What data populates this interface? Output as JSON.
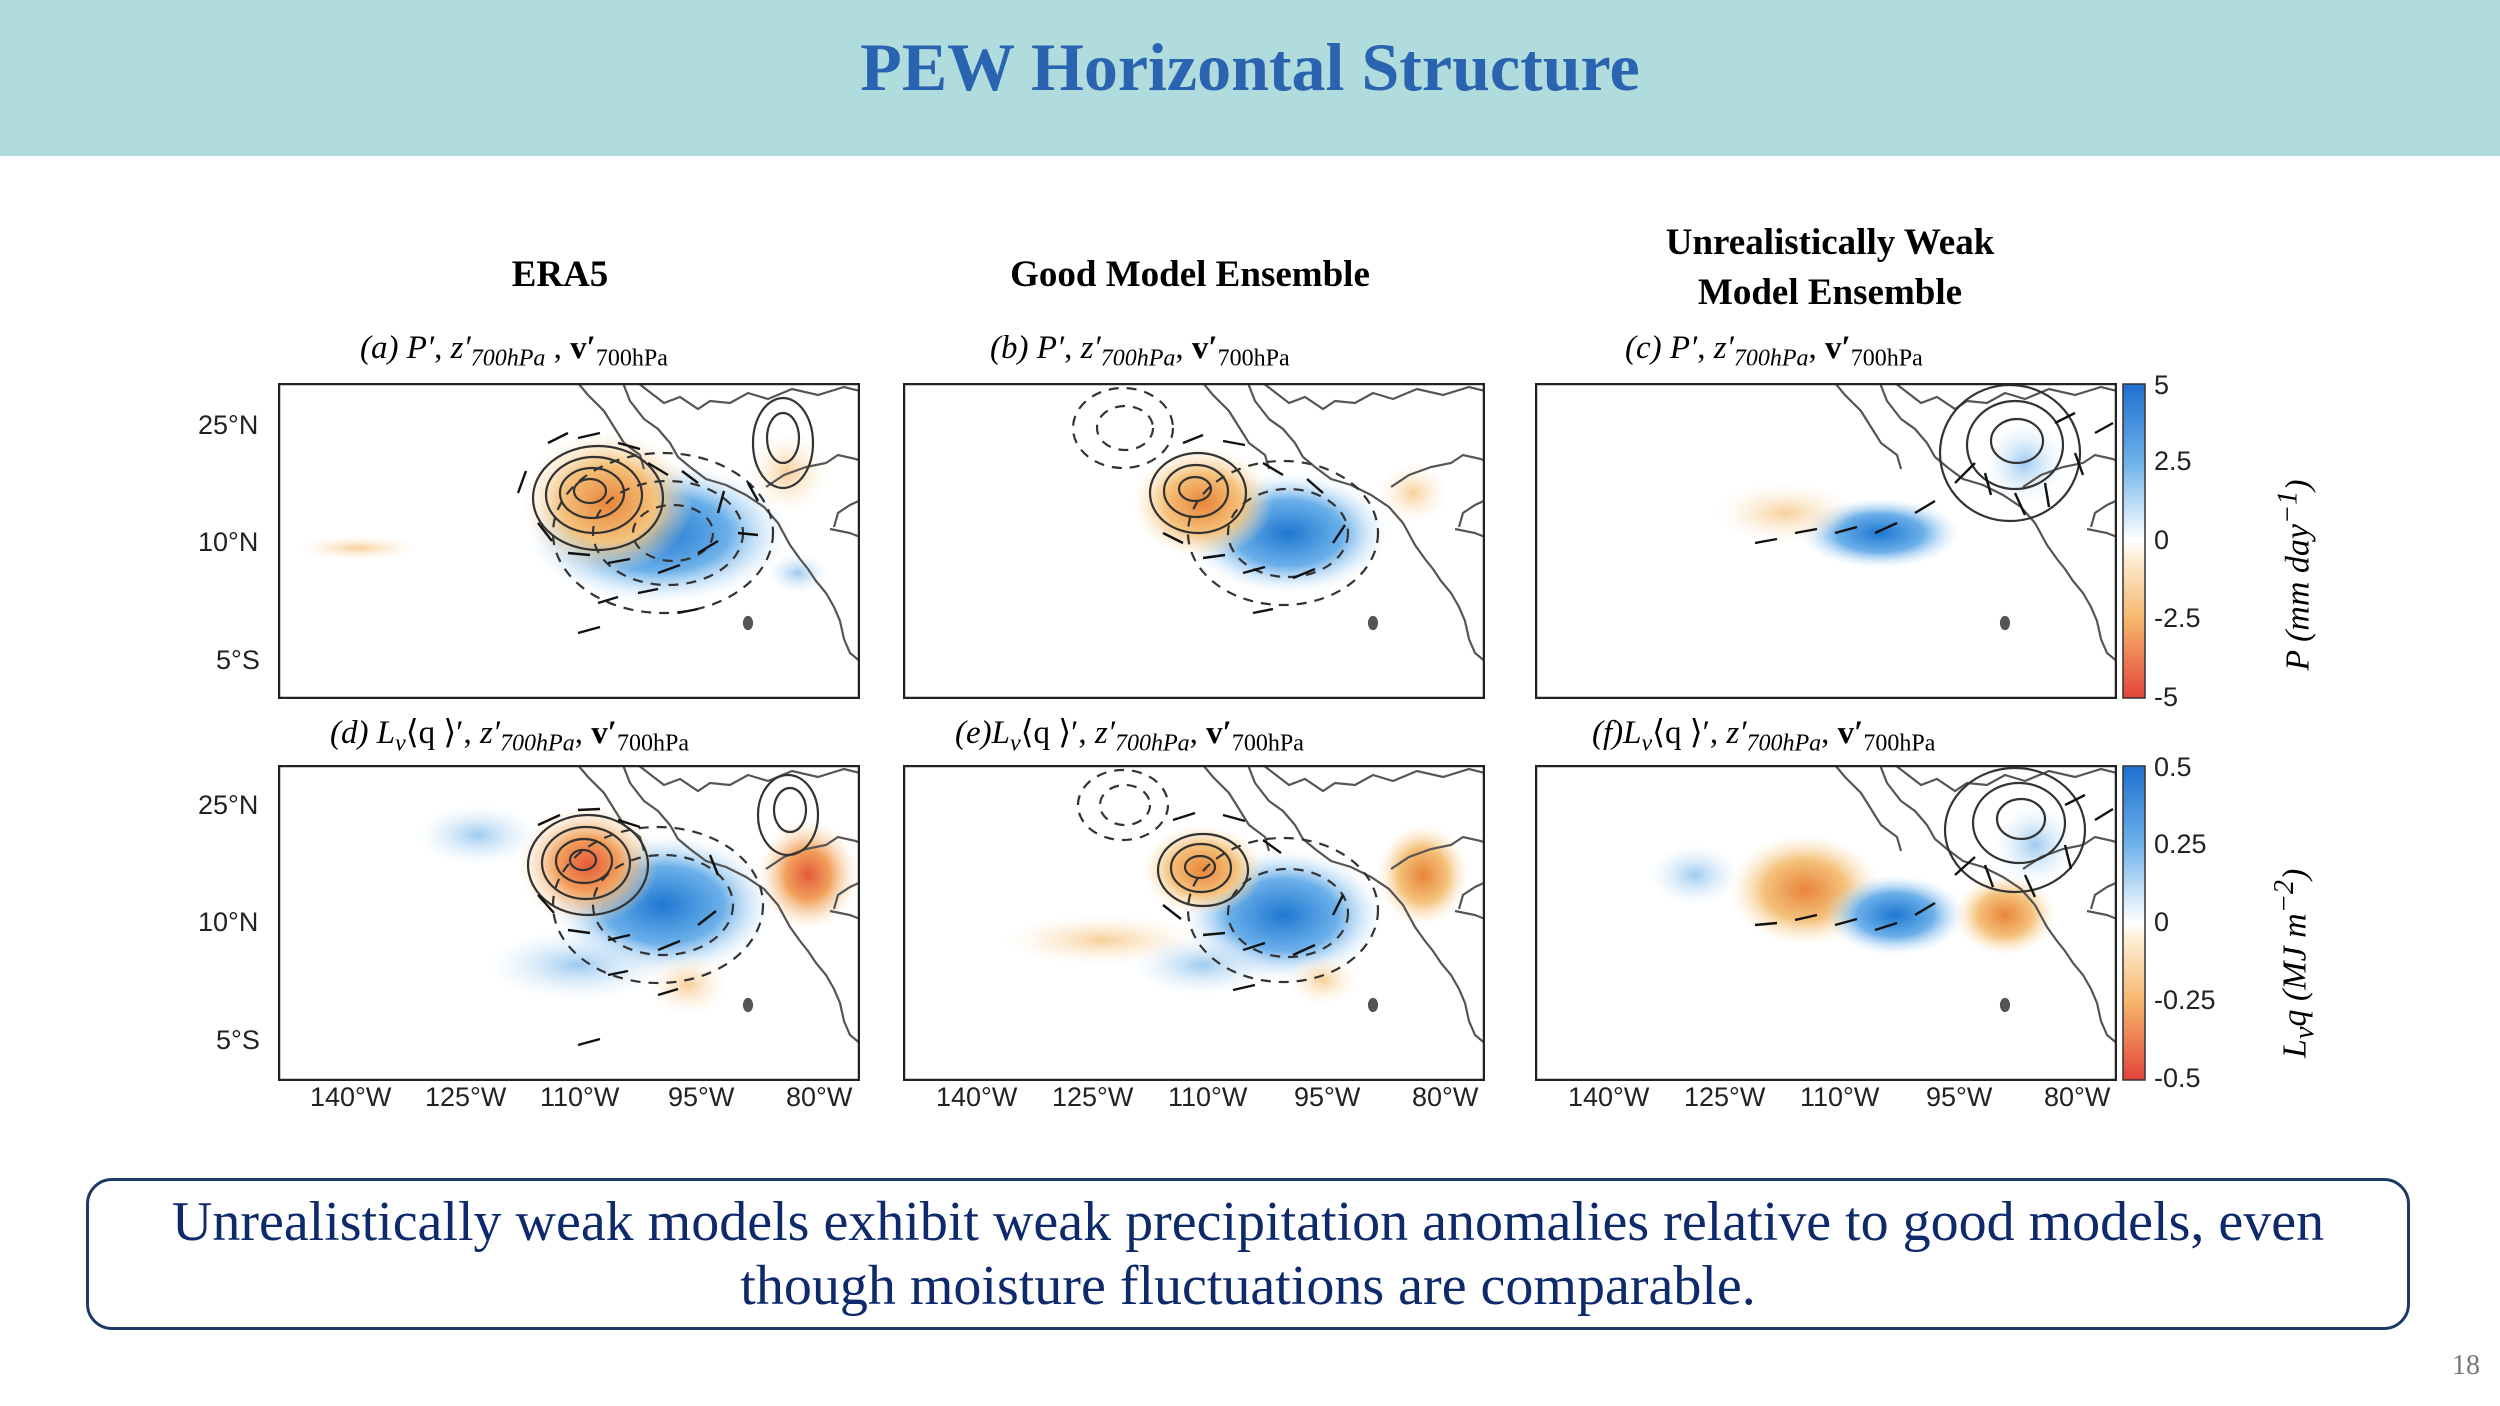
{
  "slide": {
    "title": "PEW Horizontal Structure",
    "page_number": "18",
    "summary": "Unrealistically weak models exhibit weak precipitation anomalies relative to good models, even though moisture fluctuations are comparable."
  },
  "columns": [
    {
      "title": "ERA5"
    },
    {
      "title": "Good Model Ensemble"
    },
    {
      "title_line1": "Unrealistically Weak",
      "title_line2": "Model Ensemble"
    }
  ],
  "panels": [
    {
      "id": "a",
      "label": "(a)",
      "variable": "P′"
    },
    {
      "id": "b",
      "label": "(b)",
      "variable": "P′"
    },
    {
      "id": "c",
      "label": "(c)",
      "variable": "P′"
    },
    {
      "id": "d",
      "label": "(d)",
      "variable": "L",
      "variable_sub": "v",
      "variable_rest": "⟨q ⟩′"
    },
    {
      "id": "e",
      "label": "(e)",
      "variable": "L",
      "variable_sub": "v",
      "variable_rest": "⟨q ⟩′"
    },
    {
      "id": "f",
      "label": "(f)",
      "variable": "L",
      "variable_sub": "v",
      "variable_rest": "⟨q ⟩′"
    }
  ],
  "overlay_fields": {
    "z": "z′",
    "z_sub": "700hPa",
    "v": "v′",
    "v_sub": "700hPa"
  },
  "axes": {
    "lat_labels": [
      "25°N",
      "10°N",
      "5°S"
    ],
    "lon_labels": [
      "140°W",
      "125°W",
      "110°W",
      "95°W",
      "80°W"
    ]
  },
  "colorbars": [
    {
      "ticks": [
        "5",
        "2.5",
        "0",
        "-2.5",
        "-5"
      ],
      "label": "P (mm day",
      "label_sup": "−1",
      "label_end": ")"
    },
    {
      "ticks": [
        "0.5",
        "0.25",
        "0",
        "-0.25",
        "-0.5"
      ],
      "label": "L",
      "label_sub": "v",
      "label_mid": "q (MJ m",
      "label_sup": "−2",
      "label_end": ")"
    }
  ],
  "colors": {
    "title_band": "#b0dcdd",
    "title_text": "#2a64b0",
    "summary_text": "#0e2a6d",
    "positive": "#2b84d6",
    "negative": "#e8613c"
  }
}
